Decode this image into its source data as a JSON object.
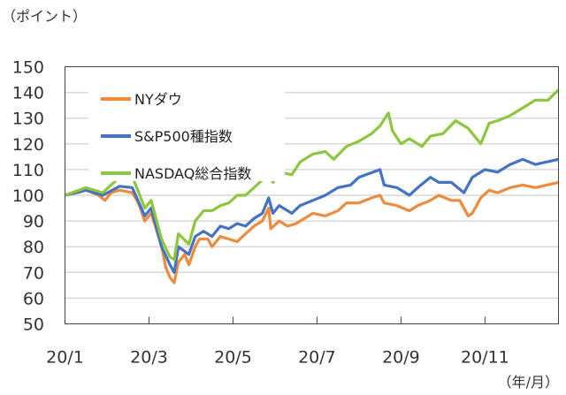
{
  "chart_data": {
    "type": "line",
    "title": "",
    "ylabel": "（ポイント）",
    "xlabel": "（年/月）",
    "ylim": [
      50,
      150
    ],
    "yticks": [
      "50",
      "60",
      "70",
      "80",
      "90",
      "100",
      "110",
      "120",
      "130",
      "140",
      "150"
    ],
    "xlim": [
      1,
      12.75
    ],
    "xticks": [
      {
        "label": "20/1",
        "value": 1
      },
      {
        "label": "20/3",
        "value": 3
      },
      {
        "label": "20/5",
        "value": 5
      },
      {
        "label": "20/7",
        "value": 7
      },
      {
        "label": "20/9",
        "value": 9
      },
      {
        "label": "20/11",
        "value": 11
      }
    ],
    "grid": true,
    "legend": "top-left",
    "series": [
      {
        "name": "NYダウ",
        "color": "#ED8B3E",
        "x": [
          1,
          1.3,
          1.5,
          1.8,
          1.95,
          2.1,
          2.3,
          2.6,
          2.75,
          2.9,
          3.05,
          3.15,
          3.3,
          3.4,
          3.5,
          3.6,
          3.7,
          3.85,
          3.95,
          4.1,
          4.2,
          4.4,
          4.5,
          4.7,
          4.9,
          5.1,
          5.3,
          5.5,
          5.7,
          5.85,
          5.9,
          6.1,
          6.3,
          6.5,
          6.7,
          6.9,
          7.2,
          7.5,
          7.7,
          8.0,
          8.3,
          8.5,
          8.6,
          8.9,
          9.2,
          9.4,
          9.7,
          9.9,
          10.2,
          10.4,
          10.6,
          10.7,
          10.9,
          11.1,
          11.3,
          11.6,
          11.9,
          12.2,
          12.75
        ],
        "y": [
          100,
          101,
          102,
          100,
          98,
          101,
          102,
          101,
          97,
          90,
          93,
          88,
          80,
          72,
          68,
          66,
          74,
          77,
          73,
          80,
          83,
          83,
          80,
          84,
          83,
          82,
          85,
          88,
          90,
          95,
          87,
          90,
          88,
          89,
          91,
          93,
          92,
          94,
          97,
          97,
          99,
          100,
          97,
          96,
          94,
          96,
          98,
          100,
          98,
          98,
          92,
          93,
          99,
          102,
          101,
          103,
          104,
          103,
          105
        ]
      },
      {
        "name": "S&P500種指数",
        "color": "#4472C4",
        "x": [
          1,
          1.5,
          1.9,
          2.3,
          2.6,
          2.9,
          3.05,
          3.3,
          3.5,
          3.6,
          3.7,
          3.95,
          4.1,
          4.3,
          4.5,
          4.7,
          4.9,
          5.1,
          5.3,
          5.5,
          5.7,
          5.85,
          5.95,
          6.1,
          6.4,
          6.6,
          6.9,
          7.2,
          7.5,
          7.8,
          8.0,
          8.5,
          8.6,
          8.9,
          9.2,
          9.4,
          9.7,
          9.9,
          10.2,
          10.5,
          10.7,
          11.0,
          11.3,
          11.6,
          11.9,
          12.2,
          12.75
        ],
        "y": [
          100,
          102,
          100,
          103.5,
          103,
          92,
          95,
          80,
          73,
          70,
          80,
          77,
          84,
          86,
          84,
          88,
          87,
          89,
          88,
          91,
          93,
          99,
          93,
          96,
          93,
          96,
          98,
          100,
          103,
          104,
          107,
          110,
          104,
          103,
          100,
          103,
          107,
          105,
          105,
          101,
          107,
          110,
          109,
          112,
          114,
          112,
          114
        ]
      },
      {
        "name": "NASDAQ総合指数",
        "color": "#8DC63F",
        "x": [
          1,
          1.5,
          1.9,
          2.3,
          2.6,
          2.9,
          3.05,
          3.3,
          3.5,
          3.6,
          3.7,
          3.95,
          4.1,
          4.3,
          4.5,
          4.7,
          4.9,
          5.1,
          5.3,
          5.5,
          5.7,
          5.85,
          5.95,
          6.1,
          6.4,
          6.6,
          6.9,
          7.2,
          7.4,
          7.7,
          8.0,
          8.3,
          8.5,
          8.7,
          8.8,
          9.0,
          9.2,
          9.5,
          9.7,
          10.0,
          10.3,
          10.6,
          10.9,
          11.1,
          11.3,
          11.6,
          11.9,
          12.2,
          12.5,
          12.75
        ],
        "y": [
          100,
          103,
          101,
          107,
          107.5,
          95,
          98,
          83,
          76,
          75,
          85,
          81,
          90,
          94,
          94,
          96,
          97,
          100,
          100,
          103,
          106,
          110,
          105,
          109,
          108,
          113,
          116,
          117,
          114,
          119,
          121,
          124,
          127,
          132,
          125,
          120,
          122,
          119,
          123,
          124,
          129,
          126,
          120,
          128,
          129,
          131,
          134,
          137,
          137,
          141
        ]
      }
    ]
  }
}
